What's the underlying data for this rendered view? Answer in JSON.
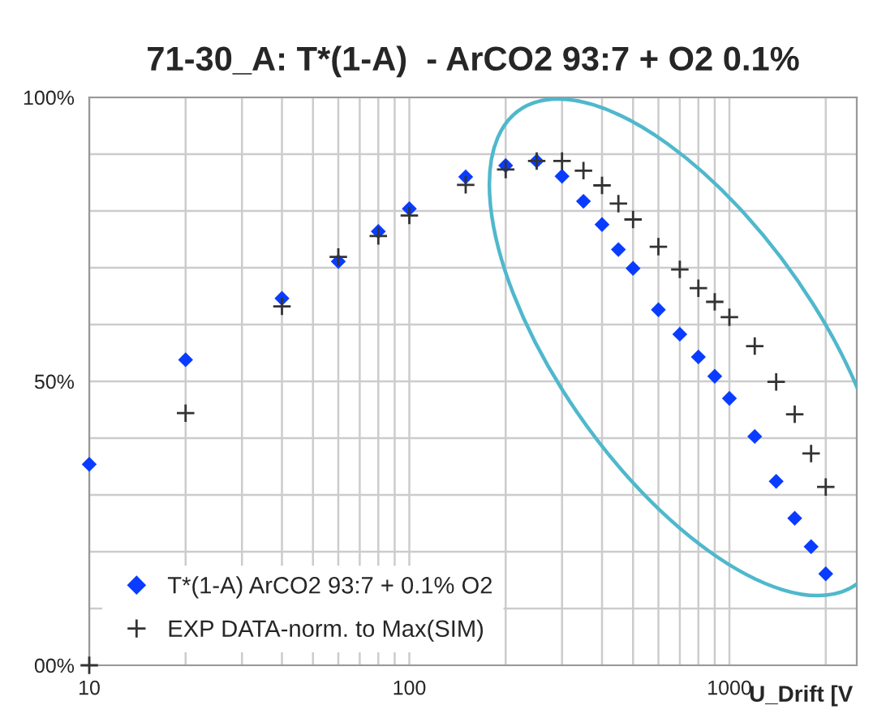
{
  "chart_data": {
    "type": "scatter",
    "title": "71-30_A: T*(1-A)  - ArCO2 93:7 + O2 0.1%",
    "xlabel": "U_Drift [V",
    "x": [
      10,
      20,
      40,
      60,
      80,
      100,
      150,
      200,
      250,
      300,
      350,
      400,
      450,
      500,
      600,
      700,
      800,
      900,
      1000,
      1200,
      1400,
      1600,
      1800,
      2000
    ],
    "series": [
      {
        "name": "T*(1-A) ArCO2 93:7 + 0.1% O2",
        "color": "#0a3cff",
        "marker": "diamond",
        "values": [
          35.4,
          53.8,
          64.6,
          71.1,
          76.4,
          80.4,
          86.0,
          88.0,
          88.8,
          86.1,
          81.7,
          77.6,
          73.2,
          69.9,
          62.6,
          58.3,
          54.3,
          50.9,
          47.0,
          40.3,
          32.4,
          25.9,
          20.9,
          16.1
        ]
      },
      {
        "name": "EXP DATA-norm. to Max(SIM)",
        "color": "#333333",
        "marker": "cross",
        "values": [
          0,
          44.4,
          63.2,
          71.9,
          75.6,
          79.2,
          84.6,
          87.3,
          88.8,
          88.8,
          87.1,
          84.5,
          81.3,
          78.5,
          73.7,
          69.7,
          66.4,
          64.0,
          61.3,
          56.2,
          49.9,
          44.2,
          37.3,
          31.4
        ]
      }
    ],
    "log": "x",
    "xlim": [
      10,
      2500
    ],
    "xticks": [
      10,
      {
        "value": 20,
        "label": null
      },
      {
        "value": 30,
        "label": null
      },
      {
        "value": 40,
        "label": null
      },
      {
        "value": 50,
        "label": null
      },
      {
        "value": 60,
        "label": null
      },
      {
        "value": 70,
        "label": null
      },
      {
        "value": 80,
        "label": null
      },
      {
        "value": 90,
        "label": null
      },
      100,
      {
        "value": 200,
        "label": null
      },
      {
        "value": 300,
        "label": null
      },
      {
        "value": 400,
        "label": null
      },
      {
        "value": 500,
        "label": null
      },
      {
        "value": 600,
        "label": null
      },
      {
        "value": 700,
        "label": null
      },
      {
        "value": 800,
        "label": null
      },
      {
        "value": 900,
        "label": null
      },
      1000,
      {
        "value": 2000,
        "label": null
      }
    ],
    "ylim": [
      0,
      100
    ],
    "yticks": [
      {
        "value": 0,
        "label": "00%"
      },
      {
        "value": 10,
        "label": null
      },
      {
        "value": 20,
        "label": null
      },
      {
        "value": 30,
        "label": null
      },
      {
        "value": 40,
        "label": null
      },
      {
        "value": 50,
        "label": "50%"
      },
      {
        "value": 60,
        "label": null
      },
      {
        "value": 70,
        "label": null
      },
      {
        "value": 80,
        "label": null
      },
      {
        "value": 90,
        "label": null
      },
      {
        "value": 100,
        "label": "100%"
      }
    ],
    "grid": true,
    "legend": "bottom left"
  }
}
